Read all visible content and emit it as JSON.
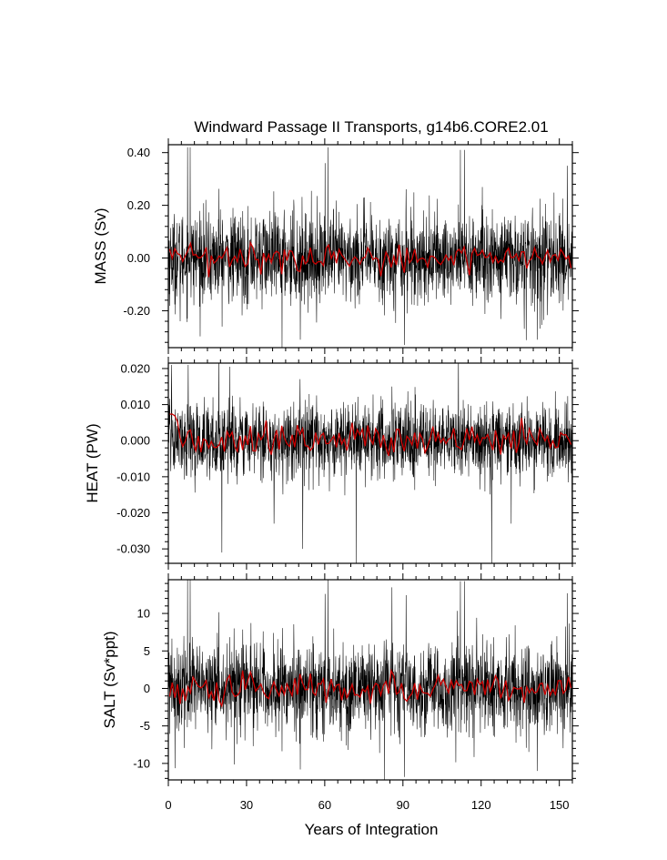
{
  "chart_data": {
    "type": "line",
    "title": "Windward Passage II Transports, g14b6.CORE2.01",
    "xlabel": "Years of Integration",
    "xlim": [
      0,
      155
    ],
    "xticks": [
      0,
      30,
      60,
      90,
      120,
      150
    ],
    "xtick_labels": [
      "0",
      "30",
      "60",
      "90",
      "120",
      "150"
    ],
    "series_colors": {
      "monthly": "#000000",
      "annual": "#cc0000"
    },
    "panels": [
      {
        "id": "mass",
        "ylabel": "MASS (Sv)",
        "ylim": [
          -0.34,
          0.43
        ],
        "yticks": [
          0.4,
          0.2,
          0.0,
          -0.2
        ],
        "ytick_labels": [
          "0.40",
          "0.20",
          "0.00",
          "-0.20"
        ],
        "base": 0.0,
        "noise": 0.085,
        "annual_amp": 0.032,
        "spikes": [
          [
            7.3,
            0.42
          ],
          [
            8.3,
            0.42
          ],
          [
            60.1,
            0.36
          ],
          [
            61.2,
            0.42
          ],
          [
            112,
            0.41
          ],
          [
            113.6,
            0.41
          ],
          [
            153,
            0.35
          ],
          [
            4.5,
            -0.24
          ],
          [
            50.6,
            -0.31
          ],
          [
            90.5,
            -0.33
          ],
          [
            141.5,
            -0.31
          ]
        ]
      },
      {
        "id": "heat",
        "ylabel": "HEAT (PW)",
        "ylim": [
          -0.034,
          0.0215
        ],
        "yticks": [
          0.02,
          0.01,
          0.0,
          -0.01,
          -0.02,
          -0.03
        ],
        "ytick_labels": [
          "0.020",
          "0.010",
          "0.000",
          "-0.010",
          "-0.020",
          "-0.030"
        ],
        "base": 0.0,
        "noise": 0.0052,
        "annual_amp": 0.0028,
        "spikes": [
          [
            1.2,
            0.021
          ],
          [
            7.6,
            0.021
          ],
          [
            23.5,
            0.0205
          ],
          [
            20.5,
            -0.031
          ],
          [
            51.5,
            -0.03
          ],
          [
            72,
            -0.034
          ],
          [
            124,
            -0.034
          ],
          [
            154.8,
            -0.03
          ],
          [
            40.5,
            -0.023
          ],
          [
            131.5,
            -0.023
          ]
        ]
      },
      {
        "id": "salt",
        "ylabel": "SALT (Sv*ppt)",
        "ylim": [
          -12.2,
          14.5
        ],
        "yticks": [
          10,
          5,
          0,
          -5,
          -10
        ],
        "ytick_labels": [
          "10",
          "5",
          "0",
          "-5",
          "-10"
        ],
        "base": 0.0,
        "noise": 3.0,
        "annual_amp": 1.15,
        "spikes": [
          [
            7.3,
            14.5
          ],
          [
            8.3,
            14.5
          ],
          [
            60.1,
            12.6
          ],
          [
            61.2,
            14.5
          ],
          [
            112,
            14.3
          ],
          [
            113.6,
            14.3
          ],
          [
            153,
            12.7
          ],
          [
            50.6,
            -10.8
          ],
          [
            90.5,
            -11.8
          ],
          [
            141.5,
            -11.0
          ]
        ]
      }
    ]
  }
}
